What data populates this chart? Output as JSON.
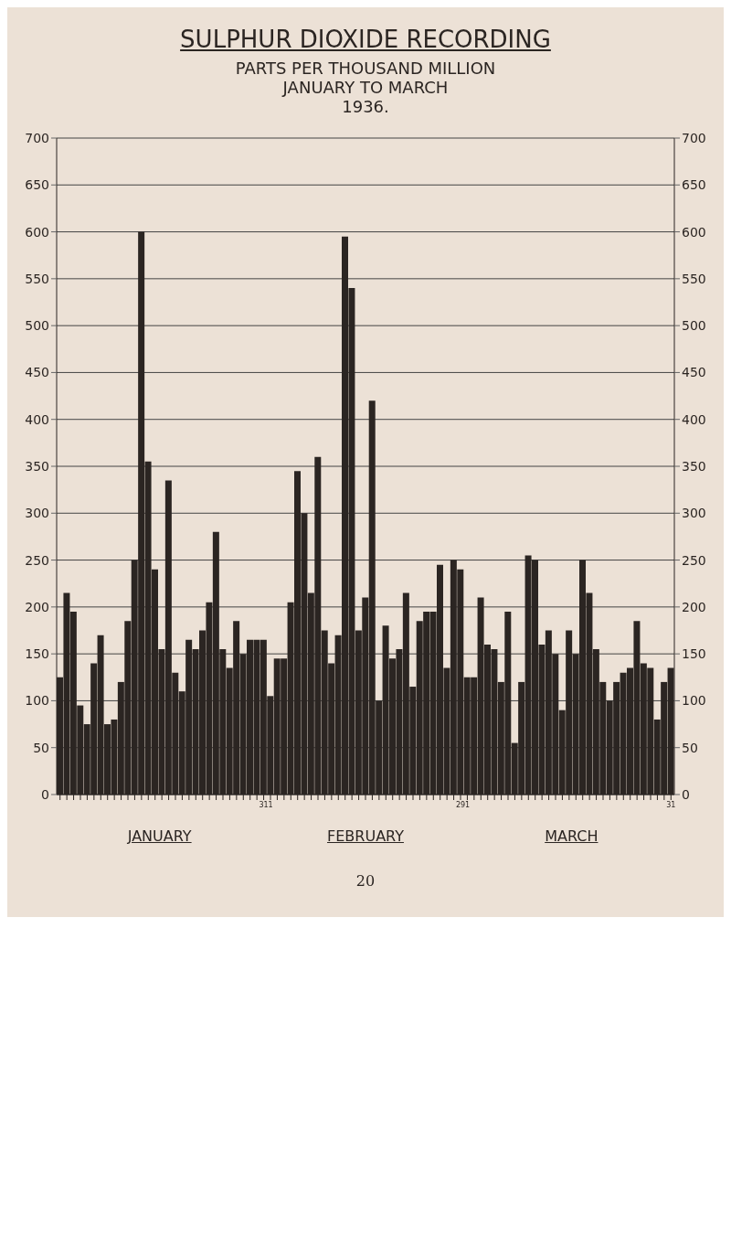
{
  "chart_data": {
    "type": "bar",
    "title": "SULPHUR DIOXIDE RECORDING",
    "subtitle": "PARTS PER THOUSAND MILLION\nJANUARY TO MARCH\n1936.",
    "categories": [
      null,
      null,
      null,
      null,
      null,
      null,
      null,
      null,
      null,
      null,
      null,
      null,
      null,
      null,
      null,
      null,
      null,
      null,
      null,
      null,
      null,
      null,
      null,
      null,
      null,
      null,
      null,
      null,
      null,
      null,
      "31",
      "1",
      null,
      null,
      null,
      null,
      null,
      null,
      null,
      null,
      null,
      null,
      null,
      null,
      null,
      null,
      null,
      null,
      null,
      null,
      null,
      null,
      null,
      null,
      null,
      null,
      null,
      null,
      null,
      "29",
      "1",
      null,
      null,
      null,
      null,
      null,
      null,
      null,
      null,
      null,
      null,
      null,
      null,
      null,
      null,
      null,
      null,
      null,
      null,
      null,
      null,
      null,
      null,
      null,
      null,
      null,
      null,
      null,
      null,
      null,
      "31"
    ],
    "values": [
      125,
      215,
      195,
      95,
      75,
      140,
      170,
      75,
      80,
      120,
      185,
      250,
      600,
      355,
      240,
      155,
      335,
      130,
      110,
      165,
      155,
      175,
      205,
      280,
      155,
      135,
      185,
      150,
      165,
      165,
      165,
      105,
      145,
      145,
      205,
      345,
      300,
      215,
      360,
      175,
      140,
      170,
      595,
      540,
      175,
      210,
      420,
      100,
      180,
      145,
      155,
      215,
      115,
      185,
      195,
      195,
      245,
      135,
      250,
      240,
      125,
      125,
      210,
      160,
      155,
      120,
      195,
      55,
      120,
      255,
      250,
      160,
      175,
      150,
      90,
      175,
      150,
      250,
      215,
      155,
      120,
      100,
      120,
      130,
      135,
      185,
      140,
      135,
      80,
      120,
      135
    ],
    "color": "#2b2522",
    "ylim": [
      0,
      700
    ],
    "yticks": [
      0,
      50,
      100,
      150,
      200,
      250,
      300,
      350,
      400,
      450,
      500,
      550,
      600,
      650,
      700
    ],
    "y2lim": [
      0,
      700
    ],
    "y2ticks": [
      0,
      50,
      100,
      150,
      200,
      250,
      300,
      350,
      400,
      450,
      500,
      550,
      600,
      650,
      700
    ],
    "grid": "y",
    "annotations": [
      "JANUARY",
      "FEBRUARY",
      "MARCH",
      "20"
    ]
  }
}
